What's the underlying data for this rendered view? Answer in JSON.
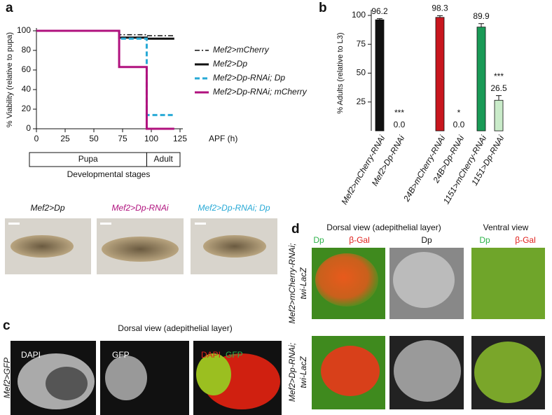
{
  "chart_data": [
    {
      "type": "step",
      "panel": "a",
      "y_label": "% Viability (relative to pupa)",
      "x_label": "APF (h)",
      "x": [
        0,
        72,
        96,
        120
      ],
      "series": [
        {
          "name": "Mef2>mCherry",
          "color": "#111111",
          "dash": "dashdot",
          "values": [
            100,
            96,
            95,
            95
          ]
        },
        {
          "name": "Mef2>Dp",
          "color": "#111111",
          "dash": "solid",
          "values": [
            100,
            93,
            92,
            92
          ]
        },
        {
          "name": "Mef2>Dp-RNAi; Dp",
          "color": "#27a9d6",
          "dash": "dash",
          "values": [
            100,
            92,
            14,
            14
          ]
        },
        {
          "name": "Mef2>Dp-RNAi; mCherry",
          "color": "#b0117e",
          "dash": "solid",
          "values": [
            100,
            63,
            0,
            0
          ]
        }
      ],
      "xlim": [
        0,
        125
      ],
      "xticks": [
        0,
        25,
        50,
        75,
        100,
        125
      ],
      "ylim": [
        0,
        100
      ],
      "yticks": [
        0,
        20,
        40,
        60,
        80,
        100
      ],
      "stages": [
        {
          "label": "Pupa",
          "start": 0,
          "end": 96
        },
        {
          "label": "Adult",
          "start": 96,
          "end": 125
        }
      ],
      "stages_title": "Developmental stages"
    },
    {
      "type": "bar",
      "panel": "b",
      "y_label": "% Adults (relative to L3)",
      "categories": [
        "Mef2>mCherry-RNAi",
        "Mef2>Dp-RNAi",
        "24B>mCherry-RNAi",
        "24B>Dp-RNAi",
        "1151>mCherry-RNAi",
        "1151>Dp-RNAi"
      ],
      "category_colors": [
        "#111111",
        "#111111",
        "#c8161e",
        "#c8161e",
        "#199a56",
        "#199a56"
      ],
      "values": [
        96.2,
        0,
        98.3,
        0,
        89.9,
        26.5
      ],
      "value_labels": [
        "96.2",
        "0.0",
        "98.3",
        "0.0",
        "89.9",
        "26.5"
      ],
      "errors": [
        1,
        0,
        1.5,
        0,
        3,
        4
      ],
      "bar_colors": [
        "#111111",
        "#ffffff",
        "#c8161e",
        "#ffffff",
        "#199a56",
        "#c9ebc9"
      ],
      "significance": [
        null,
        "***",
        null,
        "*",
        null,
        "***"
      ],
      "ylim": [
        0,
        100
      ],
      "yticks": [
        25,
        50,
        75,
        100
      ]
    }
  ],
  "panel_labels": [
    "a",
    "b",
    "c",
    "d"
  ],
  "photos": [
    "Mef2>Dp",
    "Mef2>Dp-RNAi",
    "Mef2>Dp-RNAi; Dp"
  ],
  "panel_c": {
    "title": "Dorsal view (adepithelial layer)",
    "row_label": "Mef2>GFP",
    "channels": [
      "DAPI",
      "GFP",
      "DAPI",
      "GFP"
    ]
  },
  "panel_d": {
    "dorsal_title": "Dorsal view (adepithelial layer)",
    "ventral_title": "Ventral view",
    "channels": [
      "Dp",
      "β-Gal",
      "Dp",
      "Dp",
      "β-Gal"
    ],
    "rows": [
      [
        "Mef2>mCherry-RNAi;",
        "twi-LacZ"
      ],
      [
        "Mef2>Dp-RNAi;",
        "twi-LacZ"
      ]
    ]
  }
}
